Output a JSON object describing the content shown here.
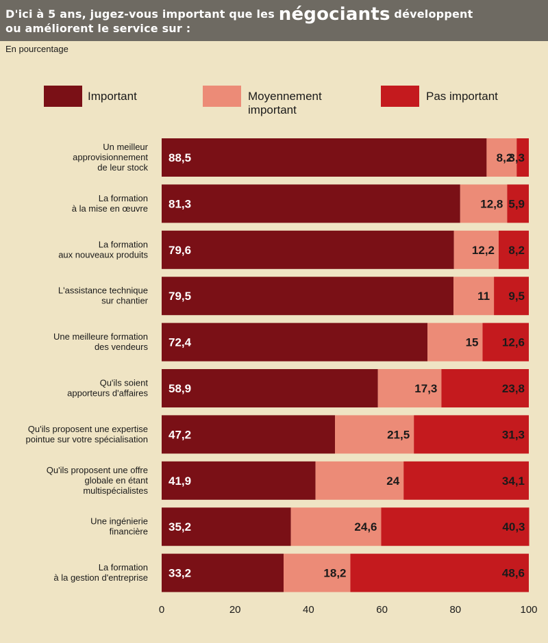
{
  "header": {
    "title_part1": "D'ici à 5 ans, jugez-vous important que les",
    "title_emphasis": "négociants",
    "title_part2": "développent",
    "title_line2": "ou améliorent le service sur :"
  },
  "unit_label": "En pourcentage",
  "colors": {
    "important": "#7a1016",
    "moyennement": "#ec8b77",
    "pas_important": "#c41a1e",
    "background": "#efe4c4",
    "header": "#6e6a62"
  },
  "chart_data": {
    "type": "bar",
    "orientation": "horizontal",
    "stacked": true,
    "categories": [
      [
        "Un meilleur",
        "approvisionnement",
        "de leur stock"
      ],
      [
        "La formation",
        "à la mise en œuvre"
      ],
      [
        "La formation",
        "aux nouveaux produits"
      ],
      [
        "L'assistance technique",
        "sur chantier"
      ],
      [
        "Une meilleure formation",
        "des vendeurs"
      ],
      [
        "Qu'ils soient",
        "apporteurs d'affaires"
      ],
      [
        "Qu'ils proposent une expertise",
        "pointue sur votre spécialisation"
      ],
      [
        "Qu'ils proposent une offre",
        "globale en étant",
        "multispécialistes"
      ],
      [
        "Une ingénierie",
        "financière"
      ],
      [
        "La formation",
        "à la gestion d'entreprise"
      ]
    ],
    "series": [
      {
        "name": "Important",
        "values": [
          88.5,
          81.3,
          79.6,
          79.5,
          72.4,
          58.9,
          47.2,
          41.9,
          35.2,
          33.2
        ]
      },
      {
        "name": "Moyennement important",
        "values": [
          8.2,
          12.8,
          12.2,
          11,
          15,
          17.3,
          21.5,
          24,
          24.6,
          18.2
        ]
      },
      {
        "name": "Pas important",
        "values": [
          3.3,
          5.9,
          8.2,
          9.5,
          12.6,
          23.8,
          31.3,
          34.1,
          40.3,
          48.6
        ]
      }
    ],
    "value_labels": [
      [
        "88,5",
        "8,2",
        "3,3"
      ],
      [
        "81,3",
        "12,8",
        "5,9"
      ],
      [
        "79,6",
        "12,2",
        "8,2"
      ],
      [
        "79,5",
        "11",
        "9,5"
      ],
      [
        "72,4",
        "15",
        "12,6"
      ],
      [
        "58,9",
        "17,3",
        "23,8"
      ],
      [
        "47,2",
        "21,5",
        "31,3"
      ],
      [
        "41,9",
        "24",
        "34,1"
      ],
      [
        "35,2",
        "24,6",
        "40,3"
      ],
      [
        "33,2",
        "18,2",
        "48,6"
      ]
    ],
    "xlim": [
      0,
      100
    ],
    "xticks": [
      "0",
      "20",
      "40",
      "60",
      "80",
      "100"
    ],
    "legend": {
      "placement": "top",
      "entries": [
        [
          "Important"
        ],
        [
          "Moyennement",
          "important"
        ],
        [
          "Pas important"
        ]
      ]
    },
    "grid": false
  }
}
